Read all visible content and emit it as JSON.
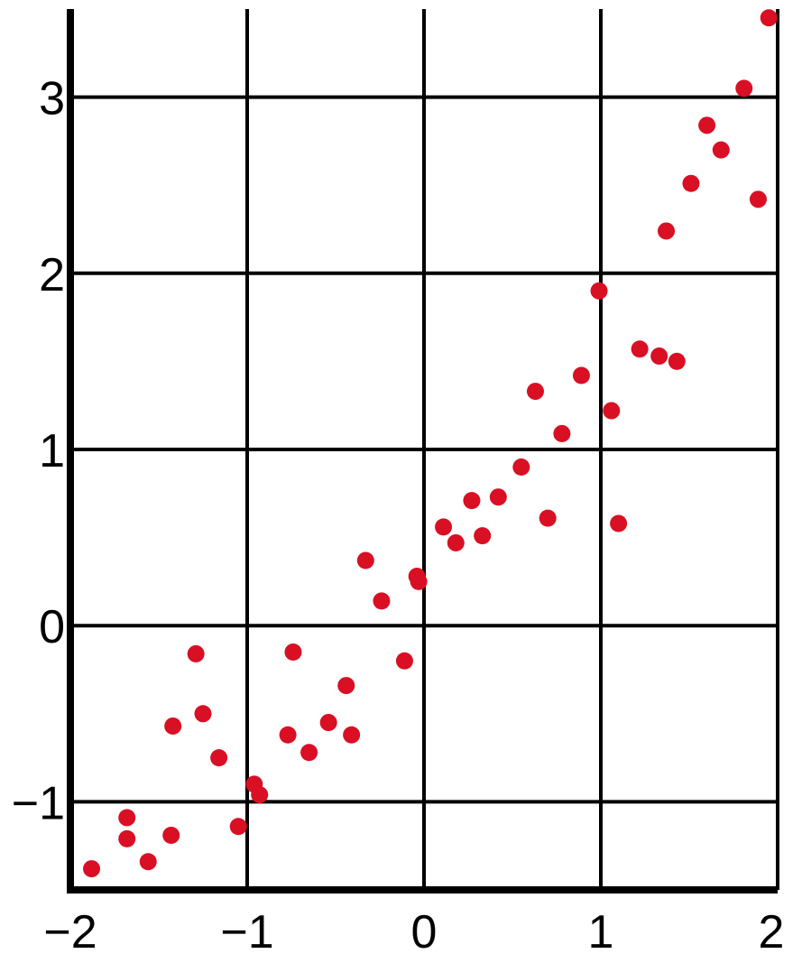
{
  "chart_data": {
    "type": "scatter",
    "title": "",
    "xlabel": "",
    "ylabel": "",
    "xlim": [
      -2,
      2
    ],
    "ylim": [
      -1.5,
      3.5
    ],
    "x_ticks": [
      -2,
      -1,
      0,
      1,
      2
    ],
    "y_ticks": [
      -1,
      0,
      1,
      2,
      3
    ],
    "x_tick_labels": [
      "−2",
      "−1",
      "0",
      "1",
      "2"
    ],
    "y_tick_labels": [
      "−1",
      "0",
      "1",
      "2",
      "3"
    ],
    "grid": true,
    "legend": "none",
    "marker_color": "#d90f24",
    "series": [
      {
        "points": [
          [
            -1.88,
            -1.38
          ],
          [
            -1.68,
            -1.09
          ],
          [
            -1.68,
            -1.21
          ],
          [
            -1.56,
            -1.34
          ],
          [
            -1.43,
            -1.19
          ],
          [
            -1.42,
            -0.57
          ],
          [
            -1.29,
            -0.16
          ],
          [
            -1.25,
            -0.5
          ],
          [
            -1.16,
            -0.75
          ],
          [
            -1.05,
            -1.14
          ],
          [
            -0.96,
            -0.9
          ],
          [
            -0.93,
            -0.96
          ],
          [
            -0.77,
            -0.62
          ],
          [
            -0.74,
            -0.15
          ],
          [
            -0.65,
            -0.72
          ],
          [
            -0.54,
            -0.55
          ],
          [
            -0.44,
            -0.34
          ],
          [
            -0.41,
            -0.62
          ],
          [
            -0.33,
            0.37
          ],
          [
            -0.24,
            0.14
          ],
          [
            -0.11,
            -0.2
          ],
          [
            -0.04,
            0.28
          ],
          [
            -0.03,
            0.25
          ],
          [
            0.11,
            0.56
          ],
          [
            0.18,
            0.47
          ],
          [
            0.27,
            0.71
          ],
          [
            0.33,
            0.51
          ],
          [
            0.42,
            0.73
          ],
          [
            0.55,
            0.9
          ],
          [
            0.63,
            1.33
          ],
          [
            0.7,
            0.61
          ],
          [
            0.78,
            1.09
          ],
          [
            0.89,
            1.42
          ],
          [
            0.99,
            1.9
          ],
          [
            1.06,
            1.22
          ],
          [
            1.1,
            0.58
          ],
          [
            1.22,
            1.57
          ],
          [
            1.33,
            1.53
          ],
          [
            1.37,
            2.24
          ],
          [
            1.43,
            1.5
          ],
          [
            1.51,
            2.51
          ],
          [
            1.6,
            2.84
          ],
          [
            1.68,
            2.7
          ],
          [
            1.81,
            3.05
          ],
          [
            1.89,
            2.42
          ],
          [
            1.95,
            3.45
          ]
        ]
      }
    ]
  }
}
